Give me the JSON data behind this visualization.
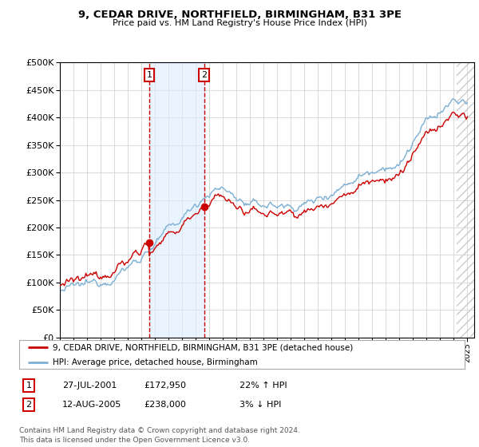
{
  "title": "9, CEDAR DRIVE, NORTHFIELD, BIRMINGHAM, B31 3PE",
  "subtitle": "Price paid vs. HM Land Registry's House Price Index (HPI)",
  "ylim": [
    0,
    500000
  ],
  "yticks": [
    0,
    50000,
    100000,
    150000,
    200000,
    250000,
    300000,
    350000,
    400000,
    450000,
    500000
  ],
  "hpi_color": "#7bafd4",
  "price_color": "#cc0000",
  "sale1_year": 2001.58,
  "sale2_year": 2005.62,
  "sale1_price": 172950,
  "sale2_price": 238000,
  "legend_line1": "9, CEDAR DRIVE, NORTHFIELD, BIRMINGHAM, B31 3PE (detached house)",
  "legend_line2": "HPI: Average price, detached house, Birmingham",
  "table_row1": [
    "1",
    "27-JUL-2001",
    "£172,950",
    "22% ↑ HPI"
  ],
  "table_row2": [
    "2",
    "12-AUG-2005",
    "£238,000",
    "3% ↓ HPI"
  ],
  "footer": "Contains HM Land Registry data © Crown copyright and database right 2024.\nThis data is licensed under the Open Government Licence v3.0.",
  "background_color": "#ffffff",
  "grid_color": "#cccccc",
  "plot_bg": "#ffffff",
  "hatch_color": "#e8e8e8"
}
